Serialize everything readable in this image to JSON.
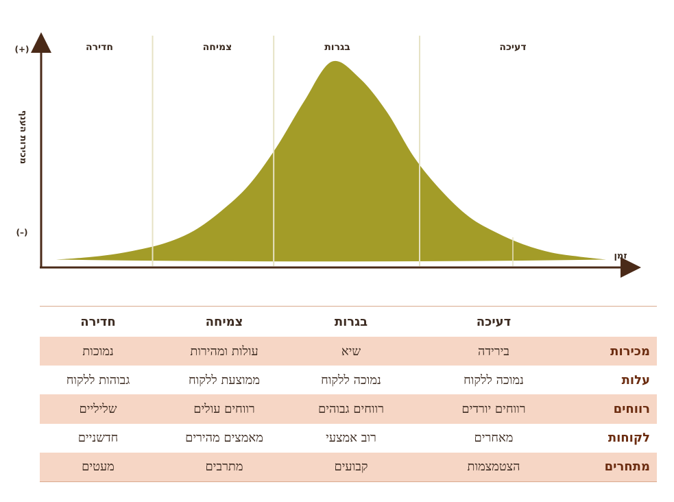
{
  "chart": {
    "y_axis_label": "מכירות הענף",
    "y_top_mark": "(+)",
    "y_bottom_mark": "(–)",
    "x_axis_label": "זמן",
    "stages": [
      "חדירה",
      "צמיחה",
      "בגרות",
      "דעיכה"
    ],
    "colors": {
      "curve": "#a39c28",
      "axis": "#4a2a18",
      "divider": "#e6e2c4"
    }
  },
  "chart_data": {
    "type": "area",
    "x": [
      0,
      5,
      10,
      15,
      20,
      25,
      30,
      35,
      40,
      45,
      50,
      55,
      60,
      65,
      70,
      75,
      80,
      85,
      90,
      95,
      100
    ],
    "values": [
      0.5,
      1.5,
      3,
      5.5,
      9,
      15,
      25,
      38,
      57,
      80,
      100,
      92,
      75,
      52,
      35,
      22,
      14,
      8,
      4,
      2,
      0.5
    ],
    "xlabel": "זמן",
    "ylabel": "מכירות הענף",
    "stage_boundaries": [
      17.5,
      39.5,
      66
    ],
    "stage_labels": [
      "חדירה",
      "צמיחה",
      "בגרות",
      "דעיכה"
    ]
  },
  "table": {
    "headers": [
      "דעיכה",
      "בגרות",
      "צמיחה",
      "חדירה"
    ],
    "rows": [
      {
        "label": "מכירות",
        "cells": [
          "בירידה",
          "שיא",
          "עולות ומהירות",
          "נמוכות"
        ]
      },
      {
        "label": "עלות",
        "cells": [
          "נמוכה ללקוח",
          "נמוכה ללקוח",
          "ממוצעת ללקוח",
          "גבוהות ללקוח"
        ]
      },
      {
        "label": "רווחים",
        "cells": [
          "רווחים יורדים",
          "רווחים גבוהים",
          "רווחים עולים",
          "שליליים"
        ]
      },
      {
        "label": "לקוחות",
        "cells": [
          "מאחרים",
          "רוב אמצעי",
          "מאמצים מהירים",
          "חדשניים"
        ]
      },
      {
        "label": "מתחרים",
        "cells": [
          "הצטמצמות",
          "קבועים",
          "מתרבים",
          "מעטים"
        ]
      }
    ]
  }
}
